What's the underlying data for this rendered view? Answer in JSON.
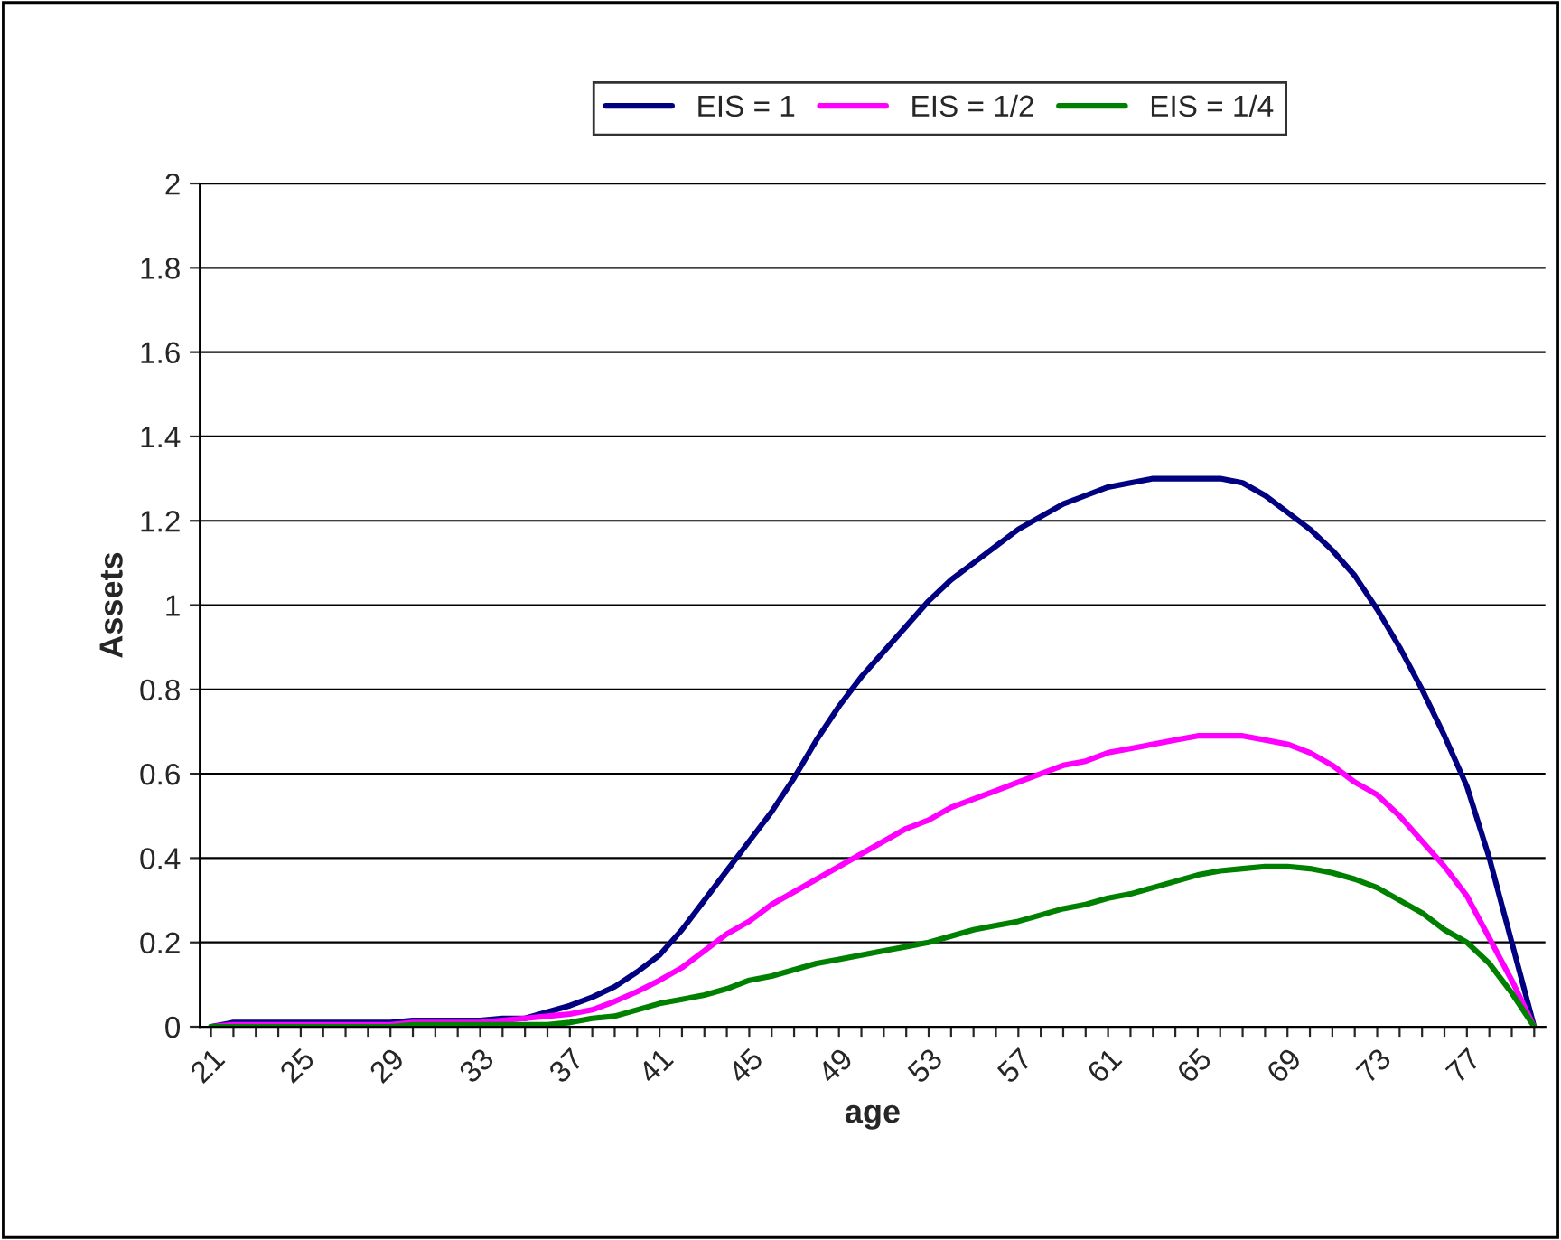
{
  "chart_data": {
    "type": "line",
    "xlabel": "age",
    "ylabel": "Assets",
    "categories": [
      "21",
      null,
      null,
      null,
      "25",
      null,
      null,
      null,
      "29",
      null,
      null,
      null,
      "33",
      null,
      null,
      null,
      "37",
      null,
      null,
      null,
      "41",
      null,
      null,
      null,
      "45",
      null,
      null,
      null,
      "49",
      null,
      null,
      null,
      "53",
      null,
      null,
      null,
      "57",
      null,
      null,
      null,
      "61",
      null,
      null,
      null,
      "65",
      null,
      null,
      null,
      "69",
      null,
      null,
      null,
      "73",
      null,
      null,
      null,
      "77",
      null,
      null,
      null
    ],
    "series": [
      {
        "name": "EIS = 1",
        "color": "#000080",
        "values": [
          0,
          0.01,
          0.01,
          0.01,
          0.01,
          0.01,
          0.01,
          0.01,
          0.01,
          0.015,
          0.015,
          0.015,
          0.015,
          0.02,
          0.02,
          0.035,
          0.05,
          0.07,
          0.095,
          0.13,
          0.17,
          0.23,
          0.3,
          0.37,
          0.44,
          0.51,
          0.59,
          0.68,
          0.76,
          0.83,
          0.89,
          0.95,
          1.01,
          1.06,
          1.1,
          1.14,
          1.18,
          1.21,
          1.24,
          1.26,
          1.28,
          1.29,
          1.3,
          1.3,
          1.3,
          1.3,
          1.29,
          1.26,
          1.22,
          1.18,
          1.13,
          1.07,
          0.99,
          0.9,
          0.8,
          0.69,
          0.57,
          0.4,
          0.2,
          0
        ]
      },
      {
        "name": "EIS = 1/2",
        "color": "#ff00ff",
        "values": [
          0,
          0.005,
          0.005,
          0.005,
          0.005,
          0.005,
          0.005,
          0.005,
          0.005,
          0.01,
          0.01,
          0.01,
          0.01,
          0.015,
          0.02,
          0.025,
          0.03,
          0.04,
          0.06,
          0.083,
          0.11,
          0.14,
          0.18,
          0.22,
          0.25,
          0.29,
          0.32,
          0.35,
          0.38,
          0.41,
          0.44,
          0.47,
          0.49,
          0.52,
          0.54,
          0.56,
          0.58,
          0.6,
          0.62,
          0.63,
          0.65,
          0.66,
          0.67,
          0.68,
          0.69,
          0.69,
          0.69,
          0.68,
          0.67,
          0.65,
          0.62,
          0.58,
          0.55,
          0.5,
          0.44,
          0.38,
          0.31,
          0.21,
          0.11,
          0
        ]
      },
      {
        "name": "EIS = 1/4",
        "color": "#008000",
        "values": [
          0,
          0,
          0,
          0,
          0,
          0,
          0,
          0,
          0,
          0.005,
          0.005,
          0.005,
          0.005,
          0.005,
          0.005,
          0.005,
          0.01,
          0.02,
          0.025,
          0.04,
          0.055,
          0.065,
          0.075,
          0.09,
          0.11,
          0.12,
          0.135,
          0.15,
          0.16,
          0.17,
          0.18,
          0.19,
          0.2,
          0.215,
          0.23,
          0.24,
          0.25,
          0.265,
          0.28,
          0.29,
          0.305,
          0.315,
          0.33,
          0.345,
          0.36,
          0.37,
          0.375,
          0.38,
          0.38,
          0.375,
          0.365,
          0.35,
          0.33,
          0.3,
          0.27,
          0.23,
          0.2,
          0.15,
          0.08,
          0
        ]
      }
    ],
    "ylim": [
      0,
      2
    ],
    "yticks": [
      0,
      0.2,
      0.4,
      0.6,
      0.8,
      1,
      1.2,
      1.4,
      1.6,
      1.8,
      2
    ],
    "grid": "y",
    "legend": "top",
    "marker": "none",
    "line_style": "solid"
  }
}
